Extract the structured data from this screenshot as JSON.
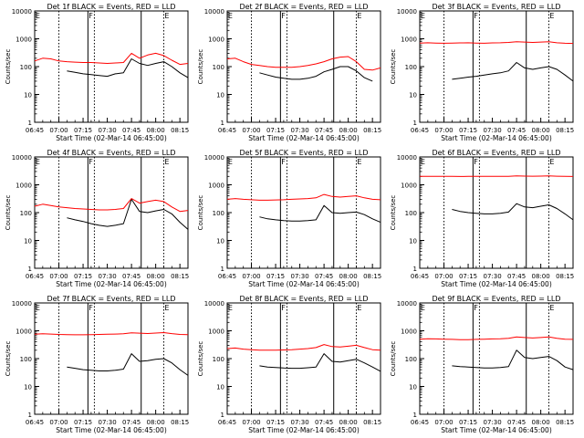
{
  "common": {
    "ylabel": "Counts/sec",
    "xlabel": "Start Time (02-Mar-14 06:45:00)",
    "x_tick_labels": [
      "06:45",
      "07:00",
      "07:15",
      "07:30",
      "07:45",
      "08:00",
      "08:15"
    ],
    "y_tick_labels": [
      "1",
      "10",
      "100",
      "1000",
      "10000"
    ],
    "marker_labels": [
      "E",
      "F",
      "E"
    ],
    "series_colors": {
      "events": "#000000",
      "lld": "#ff0000"
    }
  },
  "chart_data": [
    {
      "type": "line",
      "title": "Det 1f BLACK = Events, RED = LLD",
      "ylim": [
        1,
        10000
      ],
      "xlim_minutes": [
        0,
        95
      ],
      "x_minutes": [
        0,
        5,
        10,
        15,
        20,
        25,
        30,
        35,
        40,
        45,
        50,
        55,
        60,
        65,
        70,
        75,
        80,
        85,
        90,
        95
      ],
      "series": [
        {
          "key": "events",
          "values": [
            null,
            null,
            null,
            null,
            70,
            62,
            55,
            52,
            48,
            45,
            55,
            60,
            190,
            130,
            110,
            130,
            150,
            100,
            60,
            40
          ]
        },
        {
          "key": "lld",
          "values": [
            160,
            200,
            190,
            160,
            150,
            145,
            140,
            140,
            135,
            130,
            135,
            140,
            300,
            200,
            260,
            300,
            250,
            170,
            120,
            130
          ]
        }
      ]
    },
    {
      "type": "line",
      "title": "Det 2f BLACK = Events, RED = LLD",
      "ylim": [
        1,
        10000
      ],
      "xlim_minutes": [
        0,
        95
      ],
      "x_minutes": [
        0,
        5,
        10,
        15,
        20,
        25,
        30,
        35,
        40,
        45,
        50,
        55,
        60,
        65,
        70,
        75,
        80,
        85,
        90,
        95
      ],
      "series": [
        {
          "key": "events",
          "values": [
            null,
            null,
            null,
            null,
            60,
            50,
            42,
            38,
            35,
            35,
            38,
            45,
            65,
            80,
            100,
            100,
            70,
            40,
            30,
            null
          ]
        },
        {
          "key": "lld",
          "values": [
            190,
            200,
            150,
            120,
            110,
            100,
            95,
            95,
            95,
            100,
            110,
            125,
            150,
            190,
            220,
            230,
            150,
            80,
            75,
            90
          ]
        }
      ]
    },
    {
      "type": "line",
      "title": "Det 3f BLACK = Events, RED = LLD",
      "ylim": [
        1,
        10000
      ],
      "xlim_minutes": [
        0,
        95
      ],
      "x_minutes": [
        0,
        5,
        10,
        15,
        20,
        25,
        30,
        35,
        40,
        45,
        50,
        55,
        60,
        65,
        70,
        75,
        80,
        85,
        90,
        95
      ],
      "series": [
        {
          "key": "events",
          "values": [
            null,
            null,
            null,
            null,
            35,
            38,
            42,
            45,
            50,
            55,
            60,
            70,
            140,
            90,
            80,
            90,
            100,
            80,
            50,
            30
          ]
        },
        {
          "key": "lld",
          "values": [
            700,
            720,
            700,
            690,
            700,
            710,
            720,
            700,
            690,
            710,
            720,
            740,
            780,
            760,
            740,
            760,
            780,
            720,
            690,
            680
          ]
        }
      ]
    },
    {
      "type": "line",
      "title": "Det 4f BLACK = Events, RED = LLD",
      "ylim": [
        1,
        10000
      ],
      "xlim_minutes": [
        0,
        95
      ],
      "x_minutes": [
        0,
        5,
        10,
        15,
        20,
        25,
        30,
        35,
        40,
        45,
        50,
        55,
        60,
        65,
        70,
        75,
        80,
        85,
        90,
        95
      ],
      "series": [
        {
          "key": "events",
          "values": [
            null,
            null,
            null,
            null,
            65,
            55,
            48,
            40,
            35,
            32,
            35,
            40,
            300,
            110,
            100,
            115,
            130,
            90,
            45,
            25
          ]
        },
        {
          "key": "lld",
          "values": [
            170,
            200,
            180,
            160,
            150,
            140,
            135,
            130,
            125,
            125,
            130,
            140,
            320,
            220,
            250,
            280,
            250,
            160,
            110,
            120
          ]
        }
      ]
    },
    {
      "type": "line",
      "title": "Det 5f BLACK = Events, RED = LLD",
      "ylim": [
        1,
        10000
      ],
      "xlim_minutes": [
        0,
        95
      ],
      "x_minutes": [
        0,
        5,
        10,
        15,
        20,
        25,
        30,
        35,
        40,
        45,
        50,
        55,
        60,
        65,
        70,
        75,
        80,
        85,
        90,
        95
      ],
      "series": [
        {
          "key": "events",
          "values": [
            null,
            null,
            null,
            null,
            70,
            60,
            55,
            52,
            50,
            50,
            52,
            55,
            180,
            100,
            95,
            100,
            105,
            85,
            60,
            45
          ]
        },
        {
          "key": "lld",
          "values": [
            300,
            320,
            300,
            290,
            280,
            280,
            285,
            290,
            300,
            310,
            320,
            340,
            450,
            380,
            360,
            380,
            400,
            340,
            300,
            290
          ]
        }
      ]
    },
    {
      "type": "line",
      "title": "Det 6f BLACK = Events, RED = LLD",
      "ylim": [
        1,
        10000
      ],
      "xlim_minutes": [
        0,
        95
      ],
      "x_minutes": [
        0,
        5,
        10,
        15,
        20,
        25,
        30,
        35,
        40,
        45,
        50,
        55,
        60,
        65,
        70,
        75,
        80,
        85,
        90,
        95
      ],
      "series": [
        {
          "key": "events",
          "values": [
            null,
            null,
            null,
            null,
            130,
            110,
            100,
            95,
            90,
            90,
            95,
            105,
            210,
            160,
            150,
            170,
            190,
            140,
            90,
            55
          ]
        },
        {
          "key": "lld",
          "values": [
            2000,
            2020,
            2010,
            2000,
            2000,
            1990,
            2000,
            2010,
            2000,
            2000,
            2010,
            2020,
            2080,
            2050,
            2030,
            2050,
            2080,
            2030,
            2000,
            1990
          ]
        }
      ]
    },
    {
      "type": "line",
      "title": "Det 7f BLACK = Events, RED = LLD",
      "ylim": [
        1,
        10000
      ],
      "xlim_minutes": [
        0,
        95
      ],
      "x_minutes": [
        0,
        5,
        10,
        15,
        20,
        25,
        30,
        35,
        40,
        45,
        50,
        55,
        60,
        65,
        70,
        75,
        80,
        85,
        90,
        95
      ],
      "series": [
        {
          "key": "events",
          "values": [
            null,
            null,
            null,
            null,
            50,
            45,
            40,
            38,
            36,
            36,
            38,
            42,
            150,
            80,
            85,
            95,
            100,
            70,
            40,
            25
          ]
        },
        {
          "key": "lld",
          "values": [
            750,
            780,
            760,
            740,
            730,
            720,
            720,
            730,
            740,
            750,
            760,
            780,
            850,
            820,
            800,
            830,
            860,
            790,
            740,
            730
          ]
        }
      ]
    },
    {
      "type": "line",
      "title": "Det 8f BLACK = Events, RED = LLD",
      "ylim": [
        1,
        10000
      ],
      "xlim_minutes": [
        0,
        95
      ],
      "x_minutes": [
        0,
        5,
        10,
        15,
        20,
        25,
        30,
        35,
        40,
        45,
        50,
        55,
        60,
        65,
        70,
        75,
        80,
        85,
        90,
        95
      ],
      "series": [
        {
          "key": "events",
          "values": [
            null,
            null,
            null,
            null,
            55,
            50,
            48,
            46,
            45,
            45,
            47,
            50,
            150,
            80,
            75,
            85,
            95,
            70,
            50,
            35
          ]
        },
        {
          "key": "lld",
          "values": [
            230,
            240,
            220,
            210,
            200,
            200,
            200,
            205,
            210,
            220,
            230,
            250,
            320,
            270,
            260,
            280,
            300,
            250,
            210,
            200
          ]
        }
      ]
    },
    {
      "type": "line",
      "title": "Det 9f BLACK = Events, RED = LLD",
      "ylim": [
        1,
        10000
      ],
      "xlim_minutes": [
        0,
        95
      ],
      "x_minutes": [
        0,
        5,
        10,
        15,
        20,
        25,
        30,
        35,
        40,
        45,
        50,
        55,
        60,
        65,
        70,
        75,
        80,
        85,
        90,
        95
      ],
      "series": [
        {
          "key": "events",
          "values": [
            null,
            null,
            null,
            null,
            55,
            52,
            50,
            48,
            46,
            46,
            48,
            52,
            200,
            110,
            100,
            110,
            120,
            85,
            50,
            40
          ]
        },
        {
          "key": "lld",
          "values": [
            500,
            520,
            510,
            500,
            490,
            480,
            480,
            490,
            500,
            510,
            520,
            540,
            600,
            570,
            550,
            570,
            600,
            540,
            500,
            490
          ]
        }
      ]
    }
  ]
}
